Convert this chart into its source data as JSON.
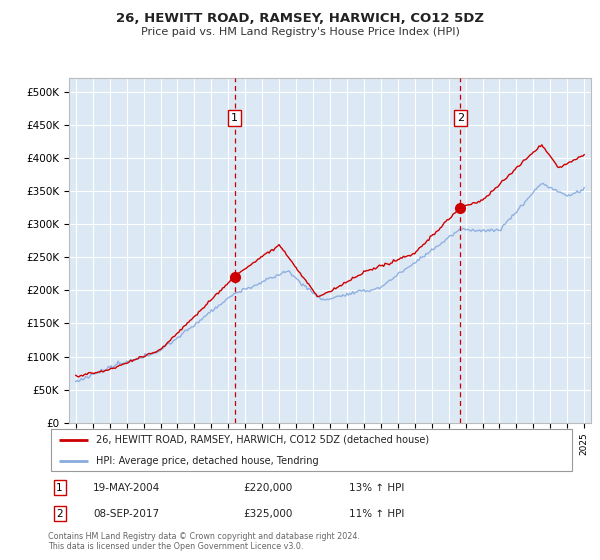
{
  "title": "26, HEWITT ROAD, RAMSEY, HARWICH, CO12 5DZ",
  "subtitle": "Price paid vs. HM Land Registry's House Price Index (HPI)",
  "ylim": [
    0,
    520000
  ],
  "yticks": [
    0,
    50000,
    100000,
    150000,
    200000,
    250000,
    300000,
    350000,
    400000,
    450000,
    500000
  ],
  "ytick_labels": [
    "£0",
    "£50K",
    "£100K",
    "£150K",
    "£200K",
    "£250K",
    "£300K",
    "£350K",
    "£400K",
    "£450K",
    "£500K"
  ],
  "background_color": "#dce9f5",
  "grid_color": "#ffffff",
  "legend_label_red": "26, HEWITT ROAD, RAMSEY, HARWICH, CO12 5DZ (detached house)",
  "legend_label_blue": "HPI: Average price, detached house, Tendring",
  "sale1_date": "19-MAY-2004",
  "sale1_price": "£220,000",
  "sale1_hpi": "13% ↑ HPI",
  "sale2_date": "08-SEP-2017",
  "sale2_price": "£325,000",
  "sale2_hpi": "11% ↑ HPI",
  "footer": "Contains HM Land Registry data © Crown copyright and database right 2024.\nThis data is licensed under the Open Government Licence v3.0.",
  "red_color": "#cc0000",
  "blue_color": "#88aadd",
  "sale1_x": 2004.38,
  "sale1_y": 220000,
  "sale2_x": 2017.69,
  "sale2_y": 325000,
  "vline_color": "#cc0000",
  "xmin": 1995,
  "xmax": 2025
}
